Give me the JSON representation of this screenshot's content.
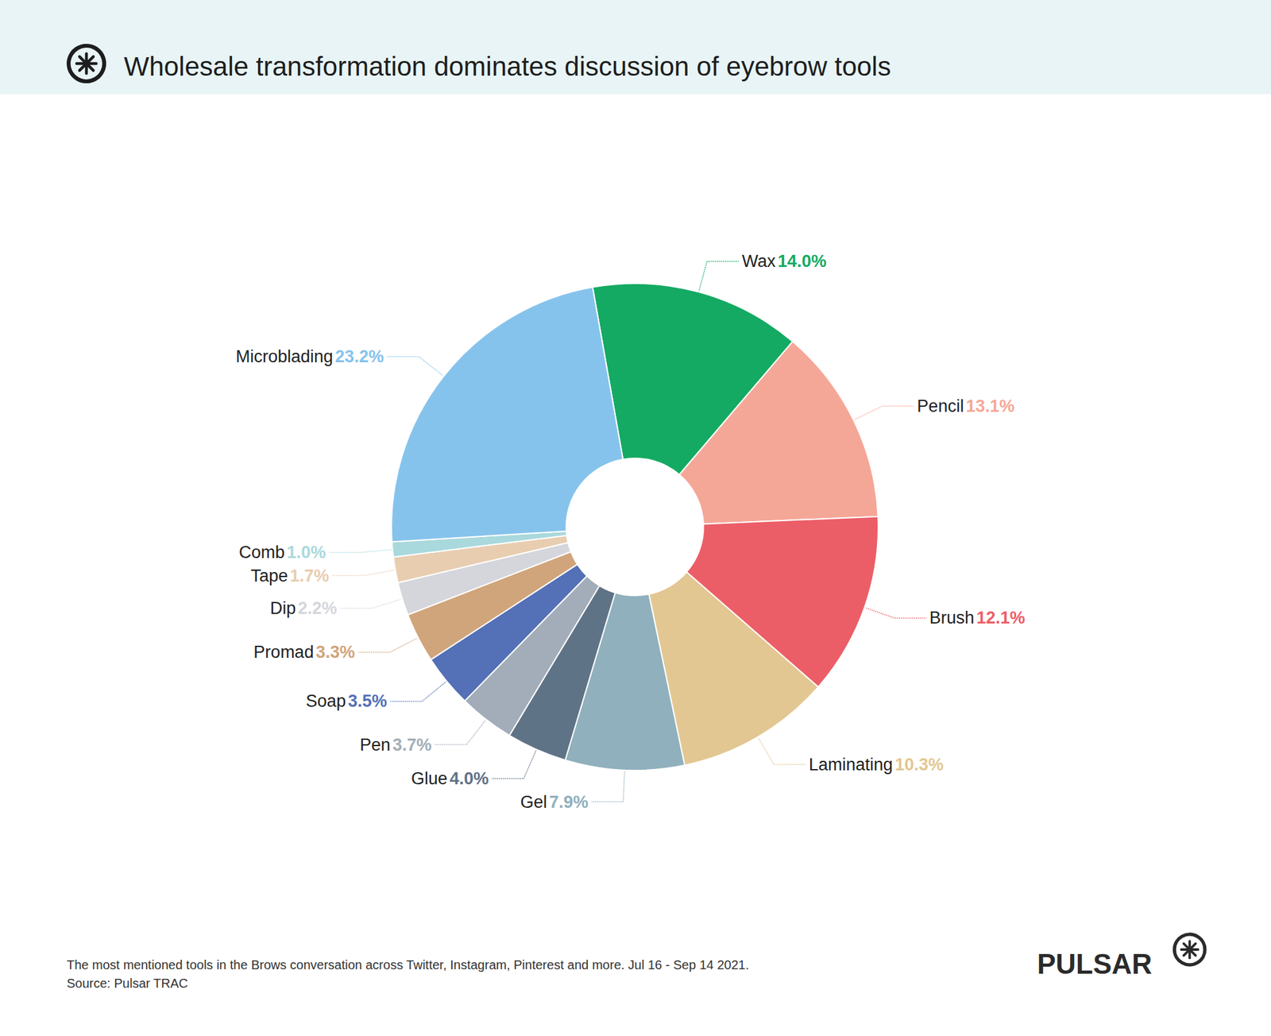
{
  "chart_data": {
    "type": "pie",
    "title": "Wholesale transformation dominates discussion of eyebrow tools",
    "footnote": "The most mentioned tools in the Brows conversation across Twitter, Instagram, Pinterest and more. Jul 16 - Sep 14 2021.",
    "source": "Source: Pulsar TRAC",
    "logo_text": "PULSAR",
    "categories": [
      "Wax",
      "Pencil",
      "Brush",
      "Laminating",
      "Gel",
      "Glue",
      "Pen",
      "Soap",
      "Promad",
      "Dip",
      "Tape",
      "Comb",
      "Microblading"
    ],
    "values": [
      14.0,
      13.1,
      12.1,
      10.3,
      7.9,
      4.0,
      3.7,
      3.5,
      3.3,
      2.2,
      1.7,
      1.0,
      23.2
    ],
    "value_labels": [
      "14.0%",
      "13.1%",
      "12.1%",
      "10.3%",
      "7.9%",
      "4.0%",
      "3.7%",
      "3.5%",
      "3.3%",
      "2.2%",
      "1.7%",
      "1.0%",
      "23.2%"
    ],
    "colors": [
      "#14aa63",
      "#f5a797",
      "#ec5e67",
      "#e3c792",
      "#8fb0bc",
      "#5f7386",
      "#a2adb9",
      "#5470b6",
      "#d0a57b",
      "#d4d6db",
      "#e8cdb0",
      "#a9d9dc",
      "#86c3ec"
    ],
    "data_labels": true
  }
}
